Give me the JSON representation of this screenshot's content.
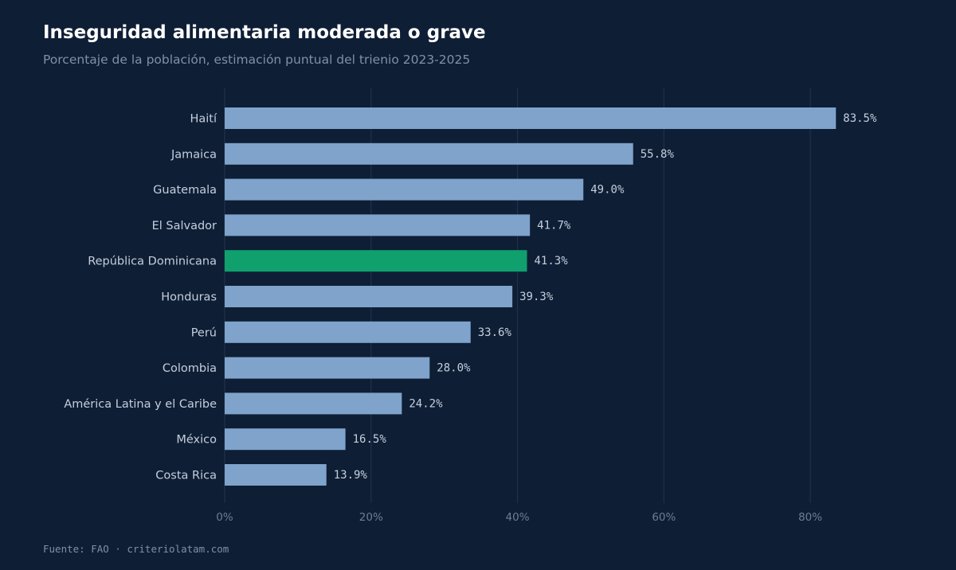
{
  "header": {
    "title": "Inseguridad alimentaria moderada o grave",
    "subtitle": "Porcentaje de la población, estimación puntual del trienio 2023-2025"
  },
  "footer": {
    "source": "Fuente: FAO · criteriolatam.com"
  },
  "colors": {
    "background": "#0e1e35",
    "bar": "#7fa3cb",
    "highlight": "#10a06e"
  },
  "chart_data": {
    "type": "bar",
    "orientation": "horizontal",
    "title": "Inseguridad alimentaria moderada o grave",
    "subtitle": "Porcentaje de la población, estimación puntual del trienio 2023-2025",
    "categories": [
      "Haití",
      "Jamaica",
      "Guatemala",
      "El Salvador",
      "República Dominicana",
      "Honduras",
      "Perú",
      "Colombia",
      "América Latina y el Caribe",
      "México",
      "Costa Rica"
    ],
    "values": [
      83.5,
      55.8,
      49.0,
      41.7,
      41.3,
      39.3,
      33.6,
      28.0,
      24.2,
      16.5,
      13.9
    ],
    "value_labels": [
      "83.5%",
      "55.8%",
      "49.0%",
      "41.7%",
      "41.3%",
      "39.3%",
      "33.6%",
      "28.0%",
      "24.2%",
      "16.5%",
      "13.9%"
    ],
    "highlight_category": "República Dominicana",
    "xlim": [
      0,
      90
    ],
    "x_ticks": [
      0,
      20,
      40,
      60,
      80
    ],
    "x_tick_labels": [
      "0%",
      "20%",
      "40%",
      "60%",
      "80%"
    ],
    "grid": "vertical",
    "legend": "none"
  }
}
